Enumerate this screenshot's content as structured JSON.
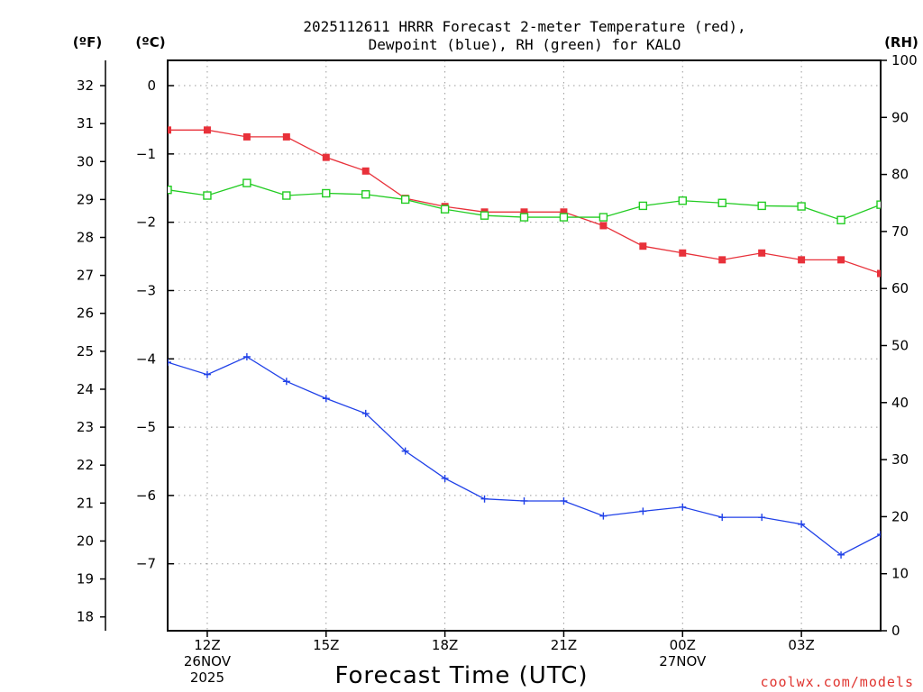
{
  "chart_data": {
    "type": "line",
    "title_line1": "2025112611 HRRR Forecast 2-meter Temperature (red),",
    "title_line2": "Dewpoint (blue), RH (green) for KALO",
    "xlabel": "Forecast Time (UTC)",
    "credit": "coolwx.com/models",
    "axis_units": {
      "fahrenheit": "(ºF)",
      "celsius": "(ºC)",
      "rh": "(RH)"
    },
    "x_hours": [
      11,
      12,
      13,
      14,
      15,
      16,
      17,
      18,
      19,
      20,
      21,
      22,
      23,
      24,
      25,
      26,
      27,
      28,
      29
    ],
    "xlim": [
      11,
      29
    ],
    "x_ticks": [
      {
        "hour": 12,
        "lines": [
          "12Z",
          "26NOV",
          "2025"
        ]
      },
      {
        "hour": 15,
        "lines": [
          "15Z"
        ]
      },
      {
        "hour": 18,
        "lines": [
          "18Z"
        ]
      },
      {
        "hour": 21,
        "lines": [
          "21Z"
        ]
      },
      {
        "hour": 24,
        "lines": [
          "00Z",
          "27NOV"
        ]
      },
      {
        "hour": 27,
        "lines": [
          "03Z"
        ]
      }
    ],
    "celsius_axis": {
      "ylim": [
        -7.98,
        0.37
      ],
      "ticks": [
        0,
        -1,
        -2,
        -3,
        -4,
        -5,
        -6,
        -7
      ],
      "tick_labels": [
        "0",
        "−1",
        "−2",
        "−3",
        "−4",
        "−5",
        "−6",
        "−7"
      ]
    },
    "fahrenheit_axis": {
      "ticks": [
        18,
        19,
        20,
        21,
        22,
        23,
        24,
        25,
        26,
        27,
        28,
        29,
        30,
        31,
        32
      ],
      "tick_labels": [
        "18",
        "19",
        "20",
        "21",
        "22",
        "23",
        "24",
        "25",
        "26",
        "27",
        "28",
        "29",
        "30",
        "31",
        "32"
      ]
    },
    "rh_axis": {
      "ylim": [
        0,
        100
      ],
      "ticks": [
        0,
        10,
        20,
        30,
        40,
        50,
        60,
        70,
        80,
        90,
        100
      ],
      "tick_labels": [
        "0",
        "10",
        "20",
        "30",
        "40",
        "50",
        "60",
        "70",
        "80",
        "90",
        "100"
      ]
    },
    "series": [
      {
        "name": "Temperature",
        "unit": "C",
        "color": "#e8313a",
        "marker": "filled-square",
        "values": [
          -0.65,
          -0.65,
          -0.75,
          -0.75,
          -1.05,
          -1.25,
          -1.65,
          -1.77,
          -1.85,
          -1.85,
          -1.85,
          -2.05,
          -2.35,
          -2.45,
          -2.55,
          -2.45,
          -2.55,
          -2.55,
          -2.75
        ]
      },
      {
        "name": "Dewpoint",
        "unit": "C",
        "color": "#2041e8",
        "marker": "plus",
        "values": [
          -4.05,
          -4.23,
          -3.97,
          -4.33,
          -4.58,
          -4.8,
          -5.35,
          -5.75,
          -6.05,
          -6.08,
          -6.08,
          -6.3,
          -6.23,
          -6.17,
          -6.32,
          -6.32,
          -6.42,
          -6.87,
          -6.57
        ]
      },
      {
        "name": "RH",
        "unit": "%",
        "color": "#22cc22",
        "marker": "open-square",
        "values": [
          77.3,
          76.3,
          78.5,
          76.3,
          76.7,
          76.5,
          75.6,
          73.9,
          72.8,
          72.5,
          72.5,
          72.5,
          74.5,
          75.4,
          75.0,
          74.5,
          74.4,
          72.0,
          74.7
        ]
      }
    ]
  }
}
